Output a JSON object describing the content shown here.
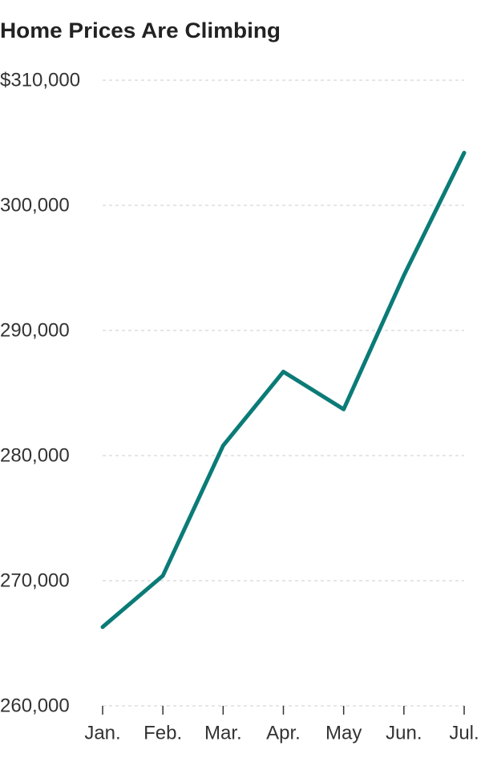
{
  "chart_data": {
    "type": "line",
    "title": "Home Prices Are Climbing",
    "categories": [
      "Jan.",
      "Feb.",
      "Mar.",
      "Apr.",
      "May",
      "Jun.",
      "Jul."
    ],
    "values": [
      266300,
      270400,
      280800,
      286700,
      283700,
      294400,
      304200
    ],
    "color": "#0b7b77",
    "ylim": [
      260000,
      310000
    ],
    "yticks": [
      {
        "value": 260000,
        "label": "260,000"
      },
      {
        "value": 270000,
        "label": "270,000"
      },
      {
        "value": 280000,
        "label": "280,000"
      },
      {
        "value": 290000,
        "label": "290,000"
      },
      {
        "value": 300000,
        "label": "300,000"
      },
      {
        "value": 310000,
        "label": "$310,000"
      }
    ],
    "grid": true
  }
}
